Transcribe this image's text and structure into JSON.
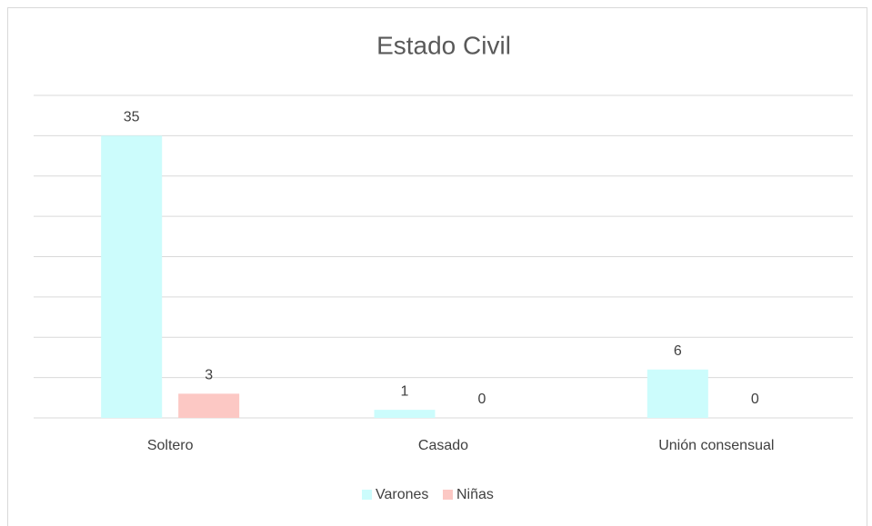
{
  "chart_data": {
    "type": "bar",
    "title": "Estado Civil",
    "categories": [
      "Soltero",
      "Casado",
      "Unión consensual"
    ],
    "series": [
      {
        "name": "Varones",
        "color": "#ccfcfc",
        "values": [
          35,
          1,
          6
        ]
      },
      {
        "name": "Niñas",
        "color": "#fcc8c4",
        "values": [
          3,
          0,
          0
        ]
      }
    ],
    "ylim": [
      0,
      40
    ],
    "yticks": [
      0,
      5,
      10,
      15,
      20,
      25,
      30,
      35,
      40
    ],
    "grid": true,
    "legend": "bottom"
  }
}
